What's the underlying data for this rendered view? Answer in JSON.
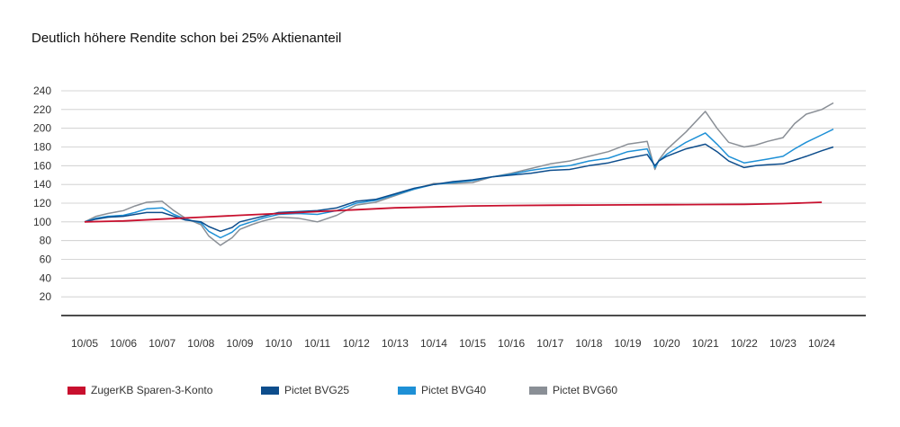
{
  "chart_data": {
    "type": "line",
    "title": "Deutlich höhere Rendite schon bei 25% Aktienanteil",
    "xlabel": "",
    "ylabel": "",
    "x_ticks": [
      "10/05",
      "10/06",
      "10/07",
      "10/08",
      "10/09",
      "10/10",
      "10/11",
      "10/12",
      "10/13",
      "10/14",
      "10/15",
      "10/16",
      "10/17",
      "10/18",
      "10/19",
      "10/20",
      "10/21",
      "10/22",
      "10/23",
      "10/24"
    ],
    "y_ticks": [
      20,
      40,
      60,
      80,
      100,
      120,
      140,
      160,
      180,
      200,
      220,
      240
    ],
    "ylim": [
      0,
      240
    ],
    "xlim": [
      0,
      19.3
    ],
    "grid": true,
    "legend_position": "bottom",
    "series": [
      {
        "name": "ZugerKB Sparen-3-Konto",
        "color": "#c8102e",
        "x": [
          0,
          1,
          2,
          3,
          4,
          5,
          6,
          7,
          8,
          9,
          10,
          11,
          12,
          13,
          14,
          15,
          16,
          17,
          18,
          19
        ],
        "values": [
          100,
          101,
          103,
          105,
          107,
          109,
          111,
          113,
          115,
          116,
          117,
          117.5,
          117.8,
          118,
          118.2,
          118.4,
          118.6,
          118.8,
          119.5,
          121
        ]
      },
      {
        "name": "Pictet BVG25",
        "color": "#0d4d8c",
        "x": [
          0,
          0.3,
          0.6,
          1,
          1.3,
          1.6,
          2,
          2.3,
          2.6,
          3,
          3.2,
          3.5,
          3.8,
          4,
          4.3,
          4.6,
          5,
          5.5,
          6,
          6.5,
          7,
          7.5,
          8,
          8.5,
          9,
          9.5,
          10,
          10.5,
          11,
          11.5,
          12,
          12.5,
          13,
          13.5,
          14,
          14.5,
          14.7,
          14.8,
          15,
          15.5,
          16,
          16.3,
          16.6,
          17,
          17.3,
          17.6,
          18,
          18.3,
          18.6,
          19,
          19.3
        ],
        "values": [
          100,
          103,
          105,
          106,
          108,
          110,
          110,
          106,
          102,
          100,
          95,
          90,
          94,
          100,
          103,
          106,
          110,
          111,
          112,
          115,
          122,
          124,
          130,
          136,
          140,
          143,
          145,
          148,
          150,
          152,
          155,
          156,
          160,
          163,
          168,
          172,
          160,
          165,
          170,
          178,
          183,
          175,
          165,
          158,
          160,
          161,
          162,
          166,
          170,
          176,
          180
        ]
      },
      {
        "name": "Pictet BVG40",
        "color": "#1e90d6",
        "x": [
          0,
          0.3,
          0.6,
          1,
          1.3,
          1.6,
          2,
          2.3,
          2.6,
          3,
          3.2,
          3.5,
          3.8,
          4,
          4.3,
          4.6,
          5,
          5.5,
          6,
          6.5,
          7,
          7.5,
          8,
          8.5,
          9,
          9.5,
          10,
          10.5,
          11,
          11.5,
          12,
          12.5,
          13,
          13.5,
          14,
          14.5,
          14.7,
          14.8,
          15,
          15.5,
          16,
          16.3,
          16.6,
          17,
          17.3,
          17.6,
          18,
          18.3,
          18.6,
          19,
          19.3
        ],
        "values": [
          100,
          104,
          106,
          107,
          110,
          114,
          115,
          108,
          103,
          99,
          90,
          83,
          89,
          96,
          100,
          104,
          108,
          109,
          108,
          112,
          120,
          123,
          129,
          135,
          140,
          142,
          144,
          148,
          151,
          155,
          158,
          160,
          165,
          168,
          175,
          178,
          158,
          165,
          172,
          185,
          195,
          183,
          170,
          163,
          165,
          167,
          170,
          178,
          185,
          193,
          199
        ]
      },
      {
        "name": "Pictet BVG60",
        "color": "#8a8f96",
        "x": [
          0,
          0.3,
          0.6,
          1,
          1.3,
          1.6,
          2,
          2.3,
          2.6,
          3,
          3.2,
          3.5,
          3.8,
          4,
          4.3,
          4.6,
          5,
          5.5,
          6,
          6.5,
          7,
          7.5,
          8,
          8.5,
          9,
          9.5,
          10,
          10.5,
          11,
          11.5,
          12,
          12.5,
          13,
          13.5,
          14,
          14.5,
          14.7,
          14.8,
          15,
          15.5,
          16,
          16.3,
          16.6,
          17,
          17.3,
          17.6,
          18,
          18.3,
          18.6,
          19,
          19.3
        ],
        "values": [
          100,
          106,
          109,
          112,
          117,
          121,
          122,
          112,
          104,
          97,
          85,
          75,
          83,
          92,
          97,
          101,
          105,
          104,
          100,
          107,
          118,
          121,
          128,
          135,
          141,
          141,
          142,
          148,
          152,
          157,
          162,
          165,
          170,
          175,
          183,
          186,
          156,
          166,
          177,
          196,
          218,
          200,
          185,
          180,
          182,
          186,
          190,
          205,
          215,
          220,
          227
        ]
      }
    ]
  }
}
